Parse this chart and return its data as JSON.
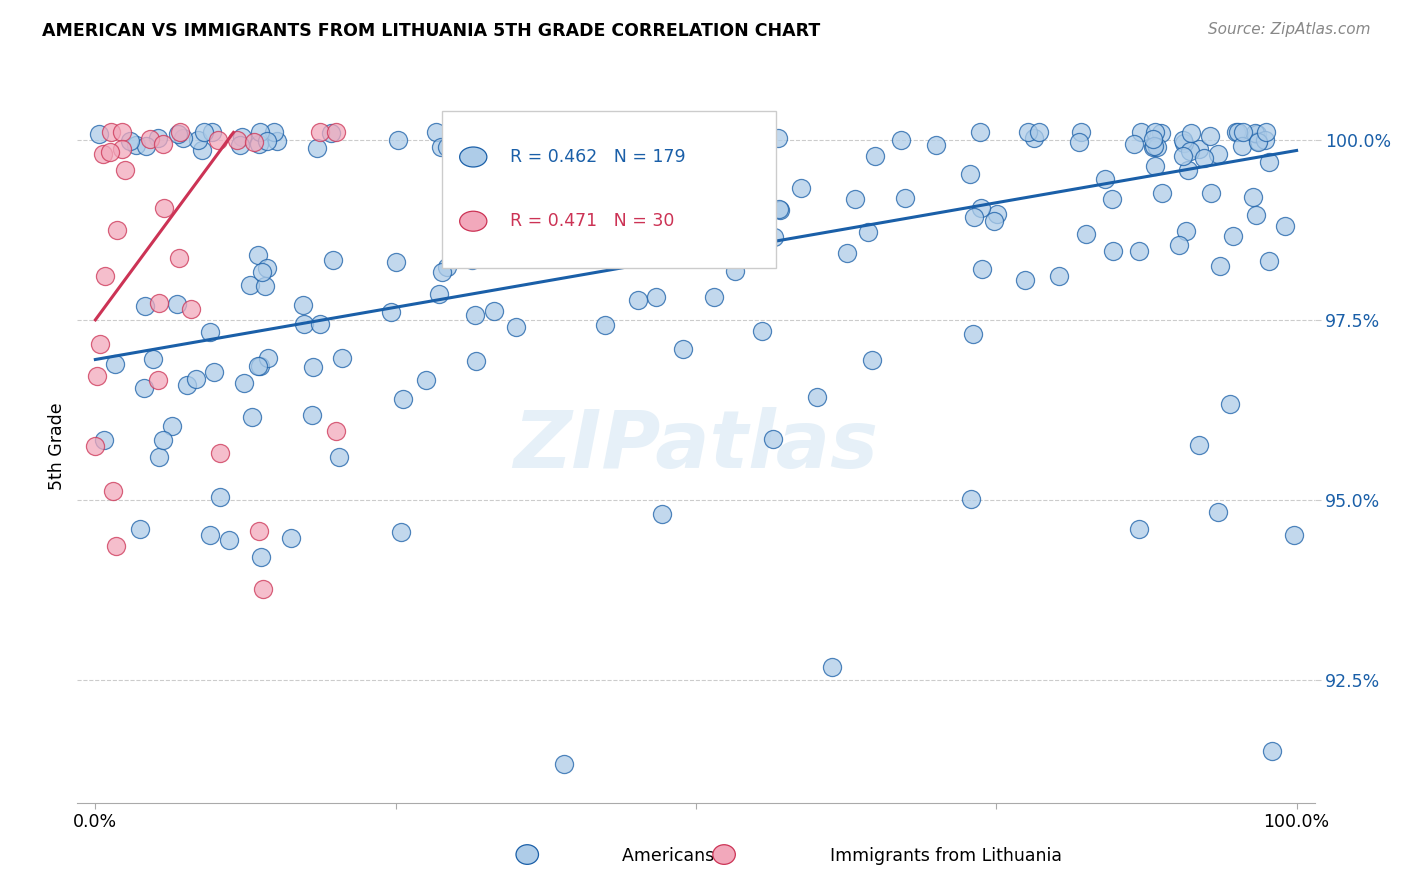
{
  "title": "AMERICAN VS IMMIGRANTS FROM LITHUANIA 5TH GRADE CORRELATION CHART",
  "source": "Source: ZipAtlas.com",
  "ylabel": "5th Grade",
  "r_american": 0.462,
  "n_american": 179,
  "r_lithuania": 0.471,
  "n_lithuania": 30,
  "color_american": "#aecce8",
  "color_lithuania": "#f2a8bb",
  "line_color_american": "#1a5fa8",
  "line_color_lithuania": "#cc3355",
  "watermark": "ZIPatlas",
  "blue_line_x": [
    0.0,
    1.0
  ],
  "blue_line_y": [
    0.9695,
    0.9985
  ],
  "pink_line_x": [
    0.0,
    0.115
  ],
  "pink_line_y": [
    0.975,
    1.001
  ],
  "ytick_positions": [
    0.925,
    0.95,
    0.975,
    1.0
  ],
  "ytick_labels": [
    "92.5%",
    "95.0%",
    "97.5%",
    "100.0%"
  ],
  "xlim": [
    -0.015,
    1.015
  ],
  "ylim": [
    0.908,
    1.007
  ]
}
